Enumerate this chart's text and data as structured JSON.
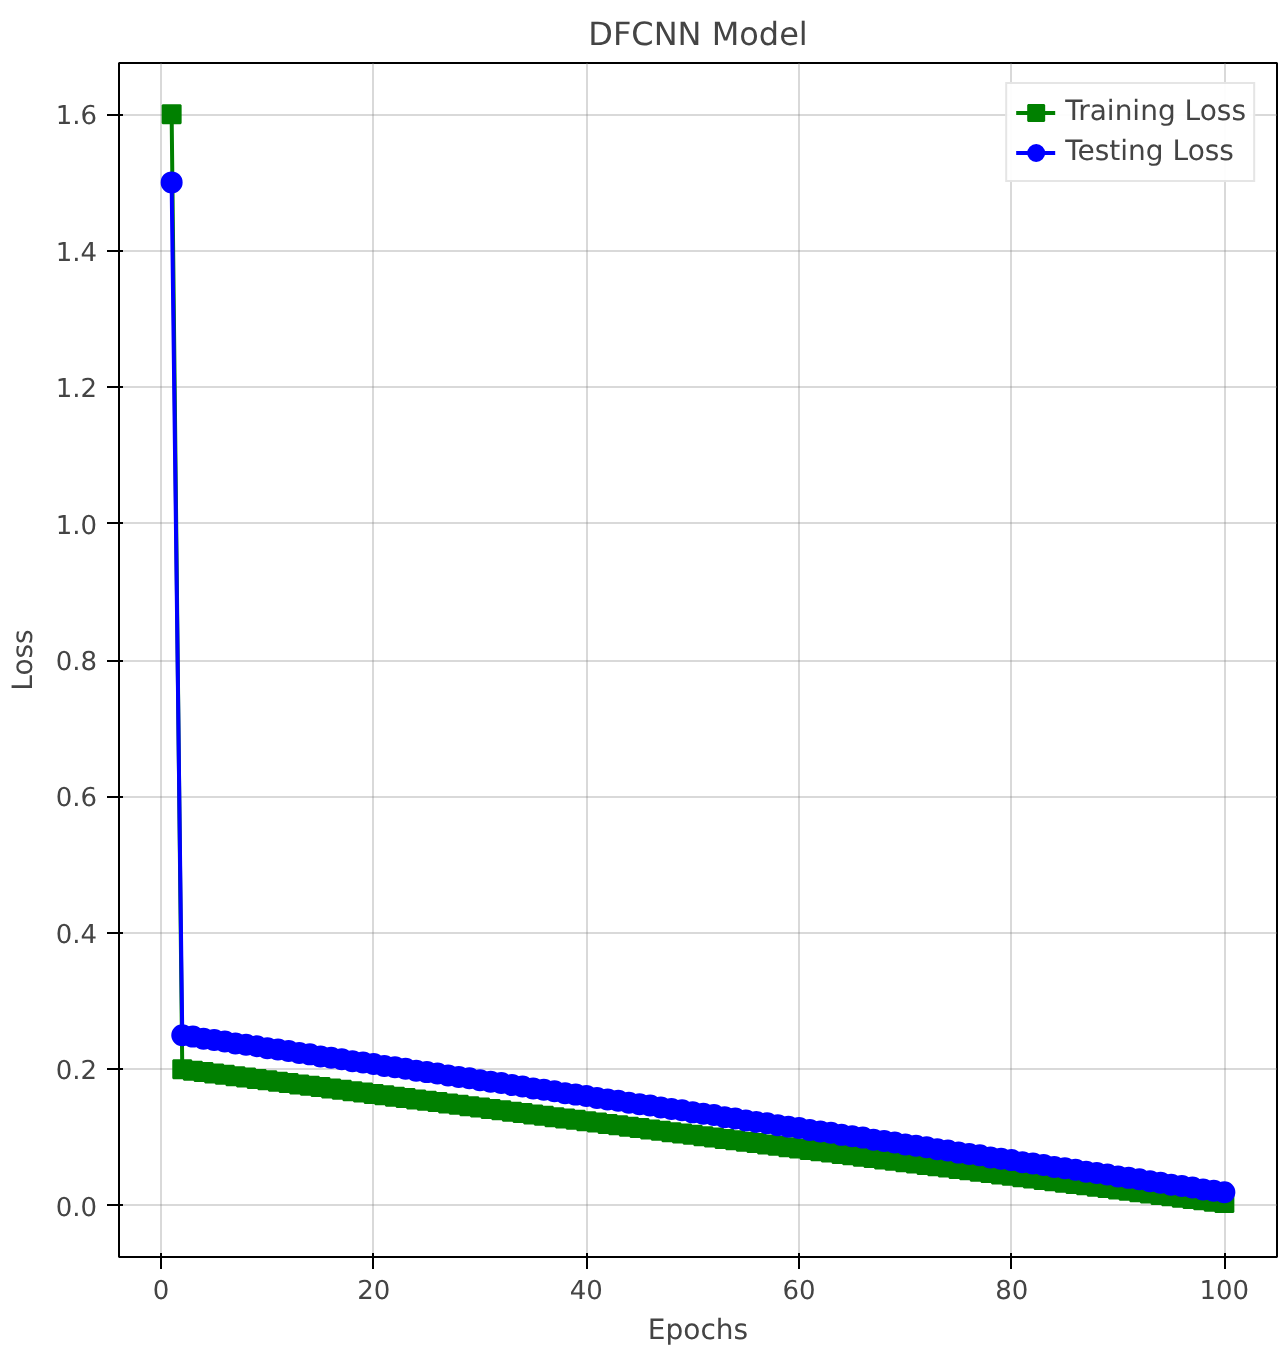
{
  "chart_data": {
    "type": "line",
    "title": "DFCNN Model",
    "xlabel": "Epochs",
    "ylabel": "Loss",
    "x": [
      1,
      2,
      3,
      4,
      5,
      6,
      7,
      8,
      9,
      10,
      11,
      12,
      13,
      14,
      15,
      16,
      17,
      18,
      19,
      20,
      21,
      22,
      23,
      24,
      25,
      26,
      27,
      28,
      29,
      30,
      31,
      32,
      33,
      34,
      35,
      36,
      37,
      38,
      39,
      40,
      41,
      42,
      43,
      44,
      45,
      46,
      47,
      48,
      49,
      50,
      51,
      52,
      53,
      54,
      55,
      56,
      57,
      58,
      59,
      60,
      61,
      62,
      63,
      64,
      65,
      66,
      67,
      68,
      69,
      70,
      71,
      72,
      73,
      74,
      75,
      76,
      77,
      78,
      79,
      80,
      81,
      82,
      83,
      84,
      85,
      86,
      87,
      88,
      89,
      90,
      91,
      92,
      93,
      94,
      95,
      96,
      97,
      98,
      99,
      100
    ],
    "series": [
      {
        "name": "Training Loss",
        "color": "#008000",
        "marker": "square",
        "values": [
          1.6,
          0.2,
          0.198,
          0.196,
          0.194,
          0.192,
          0.19,
          0.188,
          0.186,
          0.184,
          0.182,
          0.18,
          0.178,
          0.176,
          0.174,
          0.172,
          0.17,
          0.168,
          0.166,
          0.164,
          0.162,
          0.16,
          0.158,
          0.156,
          0.154,
          0.152,
          0.15,
          0.148,
          0.146,
          0.144,
          0.142,
          0.14,
          0.138,
          0.136,
          0.134,
          0.132,
          0.13,
          0.128,
          0.126,
          0.124,
          0.122,
          0.12,
          0.118,
          0.116,
          0.114,
          0.112,
          0.11,
          0.108,
          0.106,
          0.104,
          0.102,
          0.1,
          0.098,
          0.096,
          0.094,
          0.092,
          0.09,
          0.088,
          0.086,
          0.084,
          0.082,
          0.08,
          0.078,
          0.076,
          0.074,
          0.072,
          0.07,
          0.068,
          0.066,
          0.064,
          0.062,
          0.06,
          0.058,
          0.056,
          0.054,
          0.052,
          0.05,
          0.048,
          0.046,
          0.044,
          0.042,
          0.04,
          0.038,
          0.036,
          0.034,
          0.032,
          0.03,
          0.028,
          0.026,
          0.024,
          0.022,
          0.02,
          0.018,
          0.016,
          0.014,
          0.012,
          0.01,
          0.008,
          0.006,
          0.004
        ]
      },
      {
        "name": "Testing Loss",
        "color": "#0000ff",
        "marker": "circle",
        "values": [
          1.5,
          0.25,
          0.248,
          0.245,
          0.243,
          0.241,
          0.238,
          0.236,
          0.234,
          0.231,
          0.229,
          0.227,
          0.224,
          0.222,
          0.219,
          0.217,
          0.215,
          0.212,
          0.21,
          0.208,
          0.205,
          0.203,
          0.201,
          0.198,
          0.196,
          0.194,
          0.191,
          0.189,
          0.187,
          0.184,
          0.182,
          0.18,
          0.177,
          0.175,
          0.172,
          0.17,
          0.168,
          0.165,
          0.163,
          0.161,
          0.158,
          0.156,
          0.154,
          0.151,
          0.149,
          0.147,
          0.144,
          0.142,
          0.14,
          0.137,
          0.135,
          0.133,
          0.13,
          0.128,
          0.125,
          0.123,
          0.121,
          0.118,
          0.116,
          0.114,
          0.111,
          0.109,
          0.107,
          0.104,
          0.102,
          0.1,
          0.097,
          0.095,
          0.093,
          0.09,
          0.088,
          0.086,
          0.083,
          0.081,
          0.078,
          0.076,
          0.074,
          0.071,
          0.069,
          0.067,
          0.064,
          0.062,
          0.06,
          0.057,
          0.055,
          0.053,
          0.05,
          0.048,
          0.046,
          0.043,
          0.041,
          0.039,
          0.036,
          0.034,
          0.031,
          0.029,
          0.027,
          0.024,
          0.022,
          0.02
        ]
      }
    ],
    "xlim": [
      -3.95,
      104.95
    ],
    "xticks": [
      0,
      20,
      40,
      60,
      80,
      100
    ],
    "ylim": [
      -0.075,
      1.675
    ],
    "yticks": [
      {
        "value": 0,
        "label": "0.0"
      },
      0.2,
      0.4,
      0.6,
      0.8,
      {
        "value": 1,
        "label": "1.0"
      },
      1.2,
      1.4,
      1.6
    ],
    "grid": true,
    "legend": "top right",
    "line_style": "solid"
  }
}
